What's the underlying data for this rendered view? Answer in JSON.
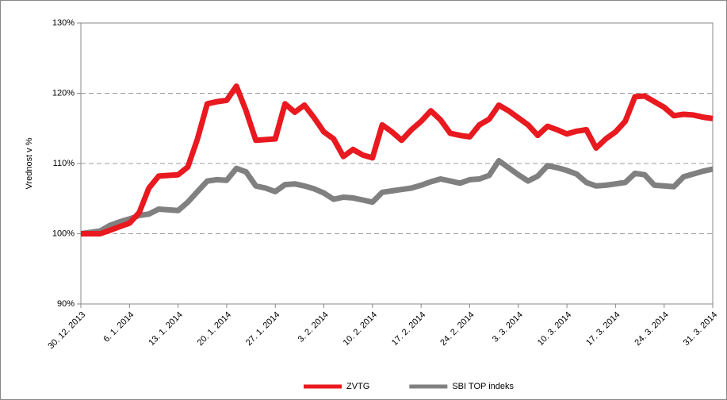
{
  "chart_data": {
    "type": "line",
    "y_label": "Vrednost v %",
    "categories": [
      "30. 12. 2013",
      null,
      null,
      null,
      null,
      "6. 1. 2014",
      null,
      null,
      null,
      null,
      "13. 1. 2014",
      null,
      null,
      null,
      null,
      "20. 1. 2014",
      null,
      null,
      null,
      null,
      "27. 1. 2014",
      null,
      null,
      null,
      null,
      "3. 2. 2014",
      null,
      null,
      null,
      null,
      "10. 2. 2014",
      null,
      null,
      null,
      null,
      "17. 2. 2014",
      null,
      null,
      null,
      null,
      "24. 2. 2014",
      null,
      null,
      null,
      null,
      "3. 3. 2014",
      null,
      null,
      null,
      null,
      "10. 3. 2014",
      null,
      null,
      null,
      null,
      "17. 3. 2014",
      null,
      null,
      null,
      null,
      "24. 3. 2014",
      null,
      null,
      null,
      null,
      "31. 3. 2014"
    ],
    "series": [
      {
        "name": "ZVTG",
        "color": "#e8191f",
        "values": [
          100,
          100,
          100,
          100.5,
          101,
          101.5,
          103,
          106.5,
          108.2,
          108.3,
          108.4,
          109.5,
          113.5,
          118.5,
          118.8,
          119,
          121,
          117.5,
          113.3,
          113.4,
          113.5,
          118.5,
          117.3,
          118.3,
          116.5,
          114.5,
          113.5,
          111,
          112,
          111.2,
          110.8,
          115.5,
          114.5,
          113.3,
          114.8,
          116,
          117.5,
          116.2,
          114.3,
          114,
          113.8,
          115.5,
          116.3,
          118.3,
          117.5,
          116.5,
          115.5,
          114,
          115.3,
          114.8,
          114.2,
          114.6,
          114.8,
          112.2,
          113.5,
          114.5,
          116,
          119.5,
          119.6,
          118.8,
          118,
          116.8,
          117,
          116.9,
          116.6,
          116.4
        ]
      },
      {
        "name": "SBI TOP indeks",
        "color": "#808080",
        "values": [
          100,
          100.2,
          100.4,
          101.2,
          101.7,
          102.1,
          102.6,
          102.8,
          103.5,
          103.4,
          103.3,
          104.5,
          106,
          107.5,
          107.7,
          107.6,
          109.3,
          108.8,
          106.8,
          106.5,
          106,
          107,
          107.1,
          106.8,
          106.4,
          105.8,
          104.9,
          105.2,
          105.1,
          104.8,
          104.5,
          105.9,
          106.1,
          106.3,
          106.5,
          106.9,
          107.4,
          107.8,
          107.5,
          107.2,
          107.7,
          107.8,
          108.3,
          110.4,
          109.4,
          108.4,
          107.5,
          108.2,
          109.7,
          109.4,
          109,
          108.5,
          107.3,
          106.8,
          106.9,
          107.1,
          107.3,
          108.6,
          108.4,
          106.9,
          106.8,
          106.7,
          108.1,
          108.5,
          108.9,
          109.2
        ]
      }
    ],
    "ylim": [
      90,
      130
    ],
    "yticks": [
      {
        "value": 90,
        "label": "90%"
      },
      {
        "value": 100,
        "label": "100%"
      },
      {
        "value": 110,
        "label": "110%"
      },
      {
        "value": 120,
        "label": "120%"
      },
      {
        "value": 130,
        "label": "130%"
      }
    ],
    "grid": true,
    "legend": "bottom"
  }
}
